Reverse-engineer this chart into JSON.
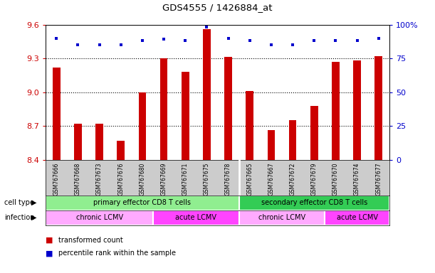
{
  "title": "GDS4555 / 1426884_at",
  "samples": [
    "GSM767666",
    "GSM767668",
    "GSM767673",
    "GSM767676",
    "GSM767680",
    "GSM767669",
    "GSM767671",
    "GSM767675",
    "GSM767678",
    "GSM767665",
    "GSM767667",
    "GSM767672",
    "GSM767679",
    "GSM767670",
    "GSM767674",
    "GSM767677"
  ],
  "red_values": [
    9.22,
    8.72,
    8.72,
    8.57,
    9.0,
    9.3,
    9.18,
    9.56,
    9.31,
    9.01,
    8.66,
    8.75,
    8.88,
    9.27,
    9.28,
    9.32
  ],
  "blue_pct": [
    90,
    85,
    85,
    85,
    88,
    89,
    88,
    98,
    90,
    88,
    85,
    85,
    88,
    88,
    88,
    90
  ],
  "ylim": [
    8.4,
    9.6
  ],
  "yticks_left": [
    8.4,
    8.7,
    9.0,
    9.3,
    9.6
  ],
  "yticks_right": [
    0,
    25,
    50,
    75,
    100
  ],
  "ylim_right": [
    0,
    100
  ],
  "cell_type_groups": [
    {
      "label": "primary effector CD8 T cells",
      "start": 0,
      "end": 9,
      "color": "#90EE90"
    },
    {
      "label": "secondary effector CD8 T cells",
      "start": 9,
      "end": 16,
      "color": "#33CC55"
    }
  ],
  "infection_groups": [
    {
      "label": "chronic LCMV",
      "start": 0,
      "end": 5,
      "color": "#FFAAFF"
    },
    {
      "label": "acute LCMV",
      "start": 5,
      "end": 9,
      "color": "#FF44FF"
    },
    {
      "label": "chronic LCMV",
      "start": 9,
      "end": 13,
      "color": "#FFAAFF"
    },
    {
      "label": "acute LCMV",
      "start": 13,
      "end": 16,
      "color": "#FF44FF"
    }
  ],
  "bar_color": "#CC0000",
  "dot_color": "#0000CC",
  "left_tick_color": "#CC0000",
  "right_tick_color": "#0000CC",
  "grid_linestyle": ":",
  "grid_linewidth": 0.8,
  "bar_width": 0.35,
  "sample_box_color": "#CCCCCC",
  "separator_col": 8.5,
  "legend_red": "transformed count",
  "legend_blue": "percentile rank within the sample",
  "label_celltype": "cell type",
  "label_infection": "infection"
}
